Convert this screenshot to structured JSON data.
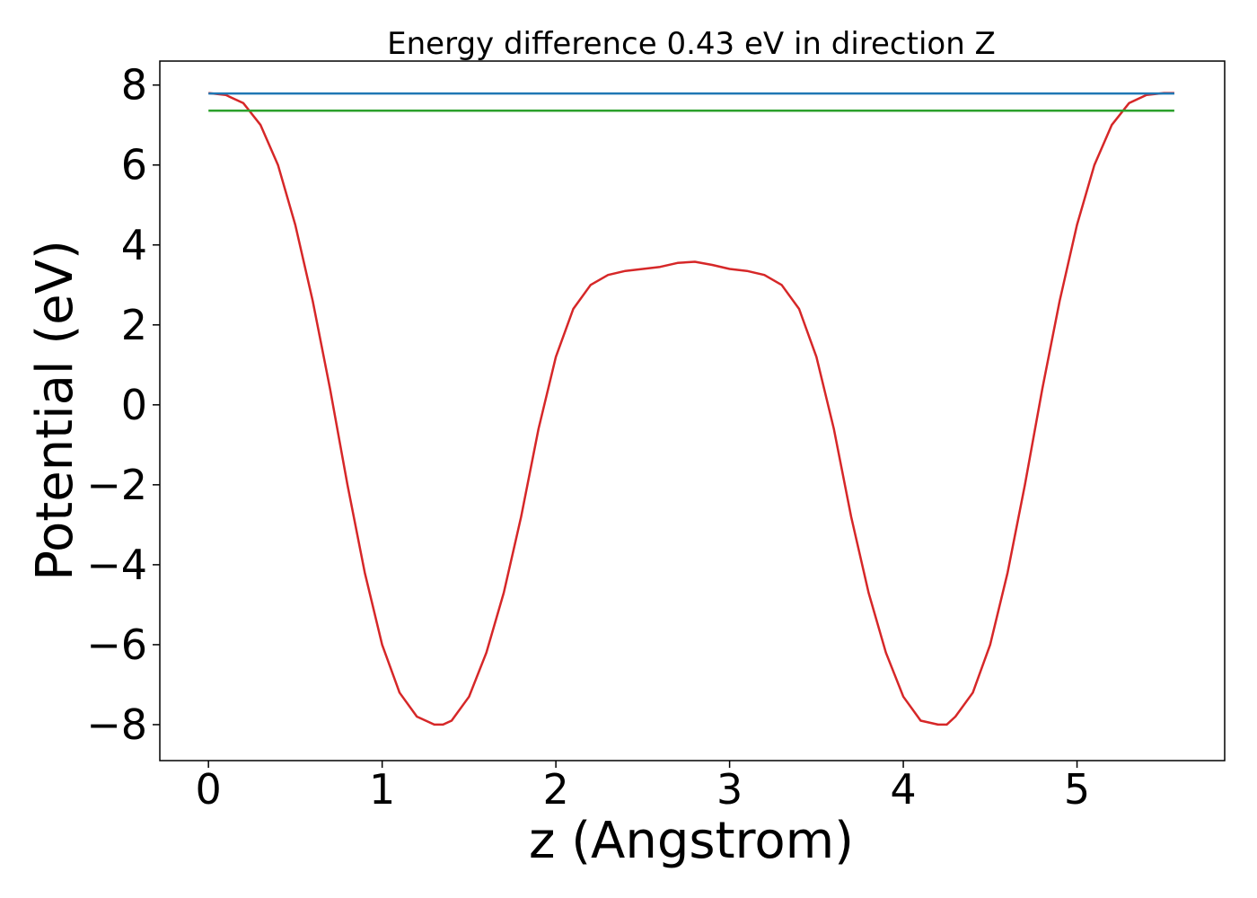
{
  "chart_data": {
    "type": "line",
    "title": "Energy difference 0.43 eV in direction Z",
    "xlabel": "z (Angstrom)",
    "ylabel": "Potential (eV)",
    "xlim": [
      -0.28,
      5.85
    ],
    "ylim": [
      -8.9,
      8.6
    ],
    "xticks": [
      0,
      1,
      2,
      3,
      4,
      5
    ],
    "xtick_labels": [
      "0",
      "1",
      "2",
      "3",
      "4",
      "5"
    ],
    "yticks": [
      -8,
      -6,
      -4,
      -2,
      0,
      2,
      4,
      6,
      8
    ],
    "ytick_labels": [
      "−8",
      "−6",
      "−4",
      "−2",
      "0",
      "2",
      "4",
      "6",
      "8"
    ],
    "grid": false,
    "series": [
      {
        "color": "#d62728",
        "x": [
          0.0,
          0.1,
          0.2,
          0.3,
          0.4,
          0.5,
          0.6,
          0.7,
          0.8,
          0.9,
          1.0,
          1.1,
          1.2,
          1.3,
          1.35,
          1.4,
          1.5,
          1.6,
          1.7,
          1.8,
          1.9,
          2.0,
          2.1,
          2.2,
          2.3,
          2.4,
          2.5,
          2.6,
          2.7,
          2.8,
          2.9,
          3.0,
          3.1,
          3.2,
          3.3,
          3.4,
          3.5,
          3.6,
          3.7,
          3.8,
          3.9,
          4.0,
          4.1,
          4.2,
          4.25,
          4.3,
          4.4,
          4.5,
          4.6,
          4.7,
          4.8,
          4.9,
          5.0,
          5.1,
          5.2,
          5.3,
          5.4,
          5.5,
          5.56
        ],
        "values": [
          7.8,
          7.75,
          7.55,
          7.0,
          6.0,
          4.5,
          2.6,
          0.4,
          -2.0,
          -4.2,
          -6.0,
          -7.2,
          -7.8,
          -8.0,
          -8.0,
          -7.9,
          -7.3,
          -6.2,
          -4.7,
          -2.8,
          -0.6,
          1.2,
          2.4,
          3.0,
          3.25,
          3.35,
          3.4,
          3.45,
          3.55,
          3.58,
          3.5,
          3.4,
          3.35,
          3.25,
          3.0,
          2.4,
          1.2,
          -0.6,
          -2.8,
          -4.7,
          -6.2,
          -7.3,
          -7.9,
          -8.0,
          -8.0,
          -7.8,
          -7.2,
          -6.0,
          -4.2,
          -2.0,
          0.4,
          2.6,
          4.5,
          6.0,
          7.0,
          7.55,
          7.75,
          7.8,
          7.8
        ]
      },
      {
        "color": "#1f77b4",
        "x": [
          0.0,
          5.56
        ],
        "values": [
          7.79,
          7.79
        ]
      },
      {
        "color": "#2ca02c",
        "x": [
          0.0,
          5.56
        ],
        "values": [
          7.36,
          7.36
        ]
      }
    ]
  }
}
